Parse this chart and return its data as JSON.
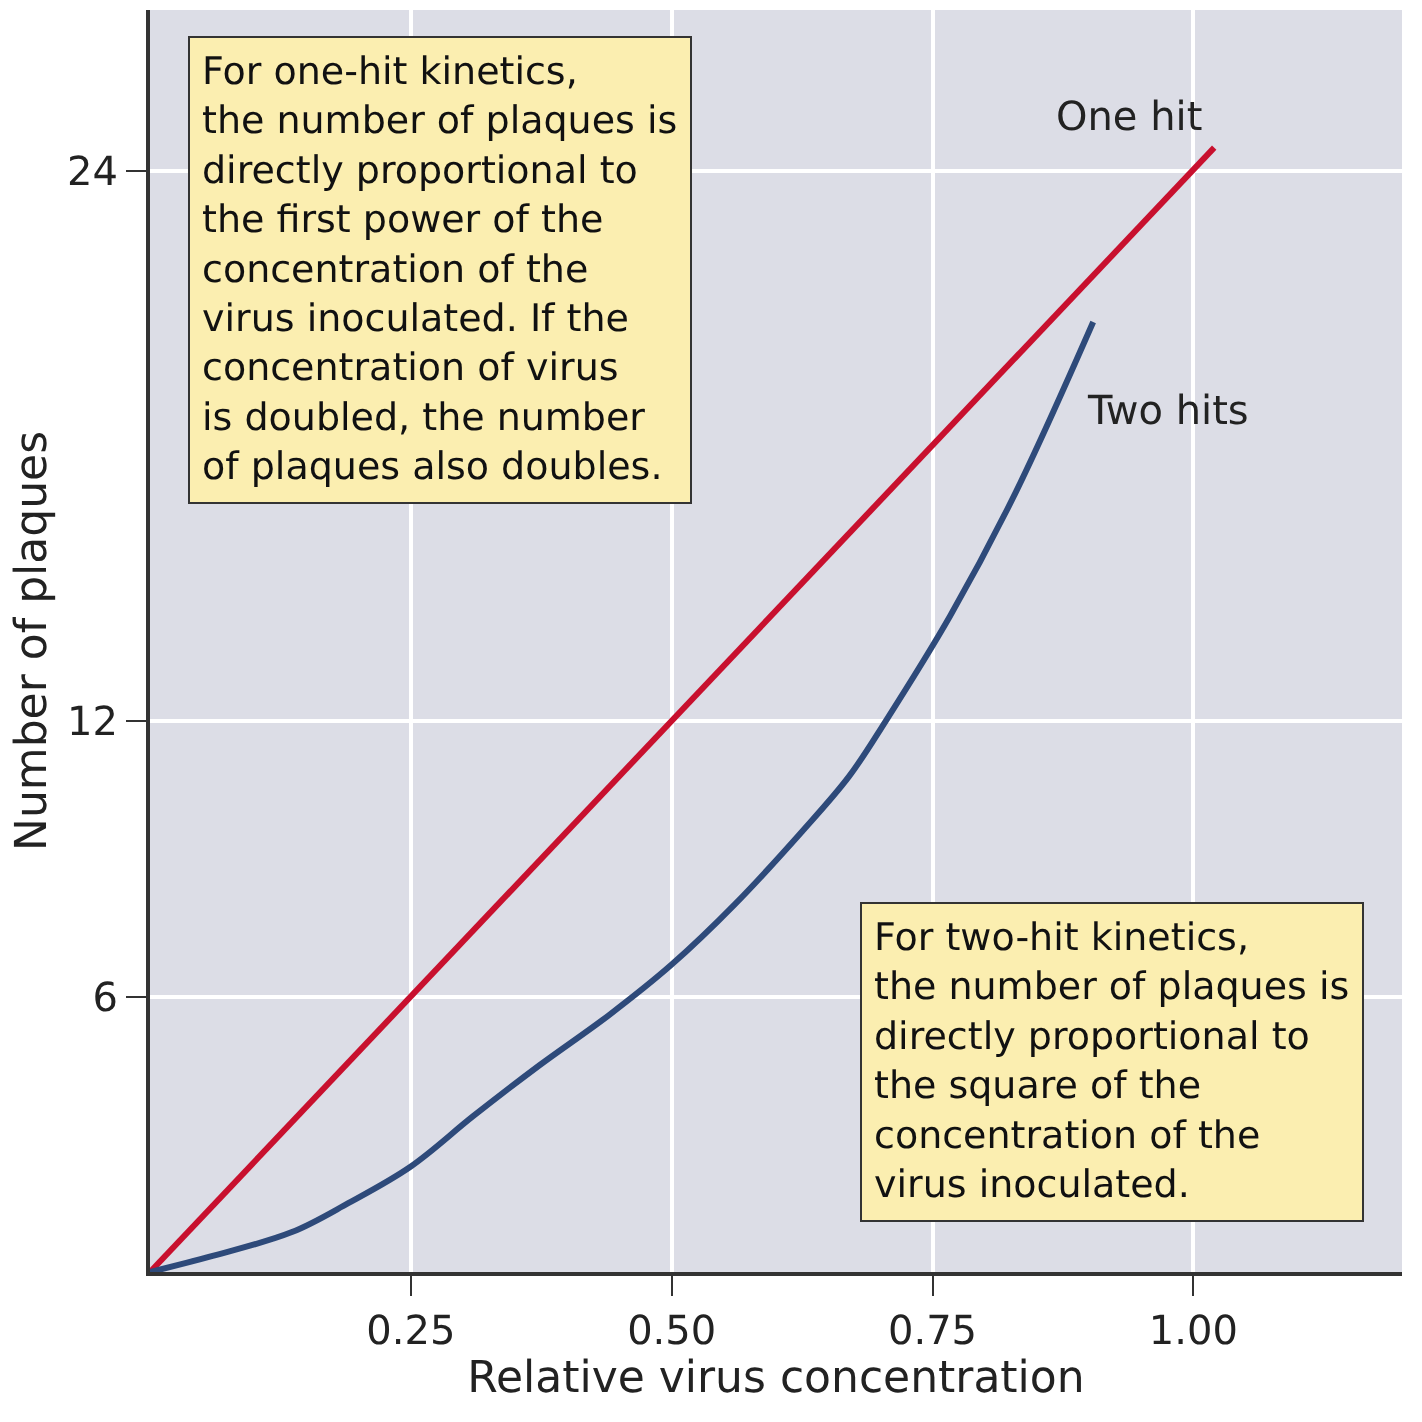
{
  "chart_data": {
    "type": "line",
    "xlabel": "Relative virus concentration",
    "ylabel": "Number of plaques",
    "x": [
      0,
      1.02
    ],
    "series": [
      {
        "name": "One hit",
        "color": "#c8102e",
        "values": [
          0,
          24.5
        ]
      },
      {
        "name": "Two hits",
        "color": "#2e4a7a",
        "x": [
          0,
          0.06,
          0.136,
          0.19,
          0.25,
          0.31,
          0.373,
          0.44,
          0.5,
          0.56,
          0.625,
          0.67,
          0.705,
          0.767,
          0.83,
          0.904
        ],
        "values": [
          0,
          0.35,
          0.87,
          1.5,
          2.3,
          3.4,
          4.5,
          5.6,
          6.7,
          8.0,
          9.6,
          10.8,
          12,
          14.3,
          17,
          20.7
        ]
      }
    ],
    "annotations": [
      "For one-hit kinetics, the number of plaques is directly proportional to the first power of the concentration of the virus inoculated. If the concentration of virus is doubled, the number of plaques also doubles.",
      "For two-hit kinetics, the number of plaques is directly proportional to the square of the concentration of the virus inoculated."
    ],
    "xlim": [
      0,
      1.2
    ],
    "ylim": [
      0,
      27.5
    ],
    "xticks": [
      {
        "value": 0.25,
        "label": "0.25"
      },
      {
        "value": 0.5,
        "label": "0.50"
      },
      {
        "value": 0.75,
        "label": "0.75"
      },
      {
        "value": 1.0,
        "label": "1.00"
      }
    ],
    "yticks": [
      6,
      12,
      24
    ],
    "grid": true,
    "legend": false,
    "marker": "none",
    "line_style": "solid"
  }
}
